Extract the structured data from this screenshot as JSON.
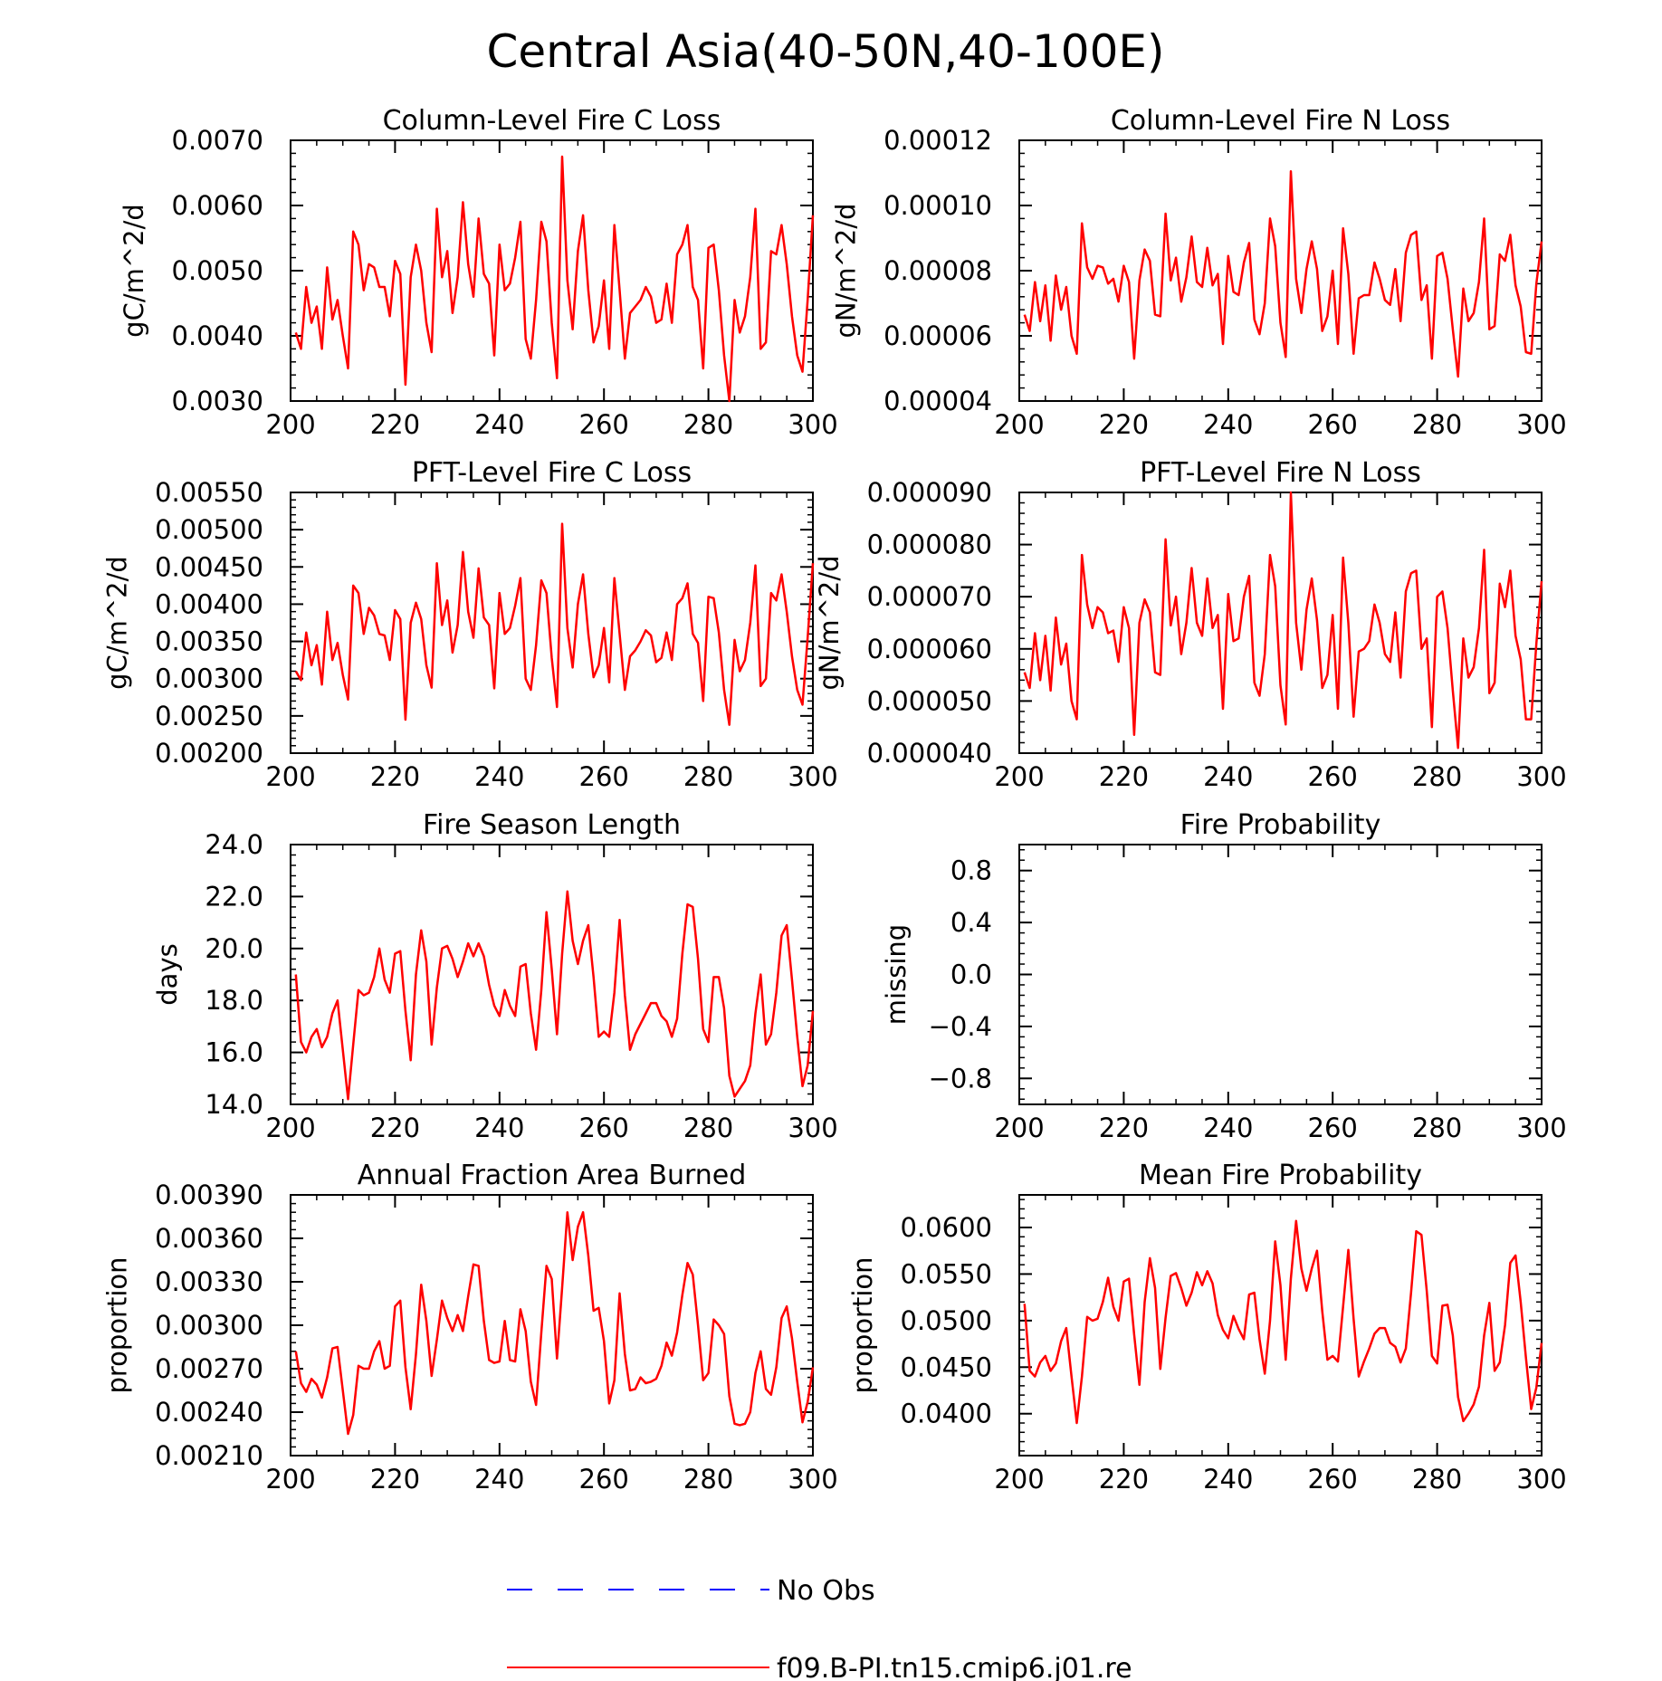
{
  "figure": {
    "title": "Central Asia(40-50N,40-100E)"
  },
  "legend": {
    "entries": [
      {
        "label": "No Obs",
        "color": "#0000ff",
        "dash": true
      },
      {
        "label": "f09.B-PI.tn15.cmip6.j01.re",
        "color": "#ff0000",
        "dash": false
      }
    ]
  },
  "chart_data": [
    {
      "type": "line",
      "title": "Column-Level Fire C Loss",
      "xlabel": "",
      "ylabel": "gC/m^2/d",
      "xlim": [
        200,
        300
      ],
      "ylim": [
        0.003,
        0.007
      ],
      "xticks": [
        "200",
        "220",
        "240",
        "260",
        "280",
        "300"
      ],
      "yticks": [
        "0.0030",
        "0.0040",
        "0.0050",
        "0.0060",
        "0.0070"
      ],
      "series": [
        {
          "color": "#ff0000",
          "x_start": 201,
          "values": [
            0.00405,
            0.0038,
            0.00475,
            0.0042,
            0.00445,
            0.0038,
            0.00505,
            0.00425,
            0.00455,
            0.004,
            0.0035,
            0.0056,
            0.0054,
            0.0047,
            0.0051,
            0.00505,
            0.00475,
            0.00475,
            0.0043,
            0.00515,
            0.00495,
            0.00325,
            0.0049,
            0.0054,
            0.005,
            0.0042,
            0.00375,
            0.00595,
            0.0049,
            0.0053,
            0.00435,
            0.0049,
            0.00605,
            0.0051,
            0.0046,
            0.0058,
            0.00495,
            0.0048,
            0.0037,
            0.0054,
            0.0047,
            0.0048,
            0.0052,
            0.00575,
            0.00395,
            0.00365,
            0.00455,
            0.00575,
            0.00545,
            0.0042,
            0.00335,
            0.00675,
            0.00485,
            0.0041,
            0.0053,
            0.00585,
            0.0047,
            0.0039,
            0.00415,
            0.00485,
            0.0038,
            0.0057,
            0.0047,
            0.00365,
            0.00435,
            0.00445,
            0.00455,
            0.00475,
            0.0046,
            0.0042,
            0.00425,
            0.0048,
            0.0042,
            0.00525,
            0.0054,
            0.0057,
            0.00475,
            0.00455,
            0.0035,
            0.00535,
            0.0054,
            0.0047,
            0.0037,
            0.003,
            0.00455,
            0.00405,
            0.0043,
            0.0049,
            0.00595,
            0.0038,
            0.0039,
            0.0053,
            0.00525,
            0.0057,
            0.0051,
            0.0043,
            0.0037,
            0.00345,
            0.00455,
            0.00585
          ]
        }
      ]
    },
    {
      "type": "line",
      "title": "Column-Level Fire N Loss",
      "xlabel": "",
      "ylabel": "gN/m^2/d",
      "xlim": [
        200,
        300
      ],
      "ylim": [
        4e-05,
        0.00012
      ],
      "xticks": [
        "200",
        "220",
        "240",
        "260",
        "280",
        "300"
      ],
      "yticks": [
        "0.00004",
        "0.00006",
        "0.00008",
        "0.00010",
        "0.00012"
      ],
      "series": [
        {
          "color": "#ff0000",
          "x_start": 201,
          "values": [
            6.65e-05,
            6.15e-05,
            7.65e-05,
            6.45e-05,
            7.55e-05,
            5.85e-05,
            7.85e-05,
            6.8e-05,
            7.5e-05,
            6e-05,
            5.45e-05,
            9.45e-05,
            8.1e-05,
            7.75e-05,
            8.15e-05,
            8.1e-05,
            7.6e-05,
            7.75e-05,
            7.05e-05,
            8.15e-05,
            7.65e-05,
            5.3e-05,
            7.7e-05,
            8.65e-05,
            8.3e-05,
            6.65e-05,
            6.6e-05,
            9.75e-05,
            7.7e-05,
            8.4e-05,
            7.05e-05,
            7.8e-05,
            9.05e-05,
            7.65e-05,
            7.5e-05,
            8.7e-05,
            7.55e-05,
            7.9e-05,
            5.75e-05,
            8.45e-05,
            7.35e-05,
            7.25e-05,
            8.25e-05,
            8.85e-05,
            6.5e-05,
            6.05e-05,
            7e-05,
            9.6e-05,
            8.75e-05,
            6.4e-05,
            5.35e-05,
            0.0001105,
            7.75e-05,
            6.7e-05,
            8.05e-05,
            8.9e-05,
            8.05e-05,
            6.15e-05,
            6.6e-05,
            8e-05,
            5.75e-05,
            9.3e-05,
            7.9e-05,
            5.45e-05,
            7.15e-05,
            7.25e-05,
            7.25e-05,
            8.25e-05,
            7.75e-05,
            7.1e-05,
            6.95e-05,
            8.05e-05,
            6.45e-05,
            8.55e-05,
            9.1e-05,
            9.2e-05,
            7.1e-05,
            7.55e-05,
            5.3e-05,
            8.45e-05,
            8.55e-05,
            7.75e-05,
            6.2e-05,
            4.75e-05,
            7.45e-05,
            6.45e-05,
            6.7e-05,
            7.65e-05,
            9.6e-05,
            6.2e-05,
            6.3e-05,
            8.5e-05,
            8.3e-05,
            9.1e-05,
            7.55e-05,
            6.9e-05,
            5.5e-05,
            5.45e-05,
            7.6e-05,
            8.9e-05
          ]
        }
      ]
    },
    {
      "type": "line",
      "title": "PFT-Level Fire C Loss",
      "xlabel": "",
      "ylabel": "gC/m^2/d",
      "xlim": [
        200,
        300
      ],
      "ylim": [
        0.002,
        0.0055
      ],
      "xticks": [
        "200",
        "220",
        "240",
        "260",
        "280",
        "300"
      ],
      "yticks": [
        "0.00200",
        "0.00250",
        "0.00300",
        "0.00350",
        "0.00400",
        "0.00450",
        "0.00500",
        "0.00550"
      ],
      "series": [
        {
          "color": "#ff0000",
          "x_start": 201,
          "values": [
            0.0031,
            0.00298,
            0.00362,
            0.00318,
            0.00345,
            0.00292,
            0.0039,
            0.00325,
            0.00348,
            0.00305,
            0.00272,
            0.00425,
            0.00415,
            0.0036,
            0.00395,
            0.00385,
            0.0036,
            0.00358,
            0.00325,
            0.00392,
            0.0038,
            0.00245,
            0.00375,
            0.00402,
            0.0038,
            0.00318,
            0.00288,
            0.00455,
            0.00372,
            0.00405,
            0.00335,
            0.00372,
            0.0047,
            0.0039,
            0.00355,
            0.00448,
            0.00382,
            0.00372,
            0.00287,
            0.00415,
            0.0036,
            0.00368,
            0.00398,
            0.00435,
            0.003,
            0.00285,
            0.00345,
            0.00432,
            0.00415,
            0.00328,
            0.00262,
            0.00508,
            0.00368,
            0.00315,
            0.004,
            0.0044,
            0.0036,
            0.00302,
            0.00318,
            0.00368,
            0.00295,
            0.00435,
            0.0036,
            0.00285,
            0.0033,
            0.00338,
            0.0035,
            0.00365,
            0.00358,
            0.00322,
            0.00328,
            0.00362,
            0.00325,
            0.004,
            0.00408,
            0.00428,
            0.0036,
            0.00348,
            0.0027,
            0.0041,
            0.00408,
            0.00362,
            0.00285,
            0.00238,
            0.00352,
            0.0031,
            0.00325,
            0.00375,
            0.00452,
            0.0029,
            0.003,
            0.00415,
            0.00405,
            0.0044,
            0.0039,
            0.0033,
            0.00285,
            0.00265,
            0.00355,
            0.00455
          ]
        }
      ]
    },
    {
      "type": "line",
      "title": "PFT-Level Fire N Loss",
      "xlabel": "",
      "ylabel": "gN/m^2/d",
      "xlim": [
        200,
        300
      ],
      "ylim": [
        4e-05,
        9e-05
      ],
      "xticks": [
        "200",
        "220",
        "240",
        "260",
        "280",
        "300"
      ],
      "yticks": [
        "0.000040",
        "0.000050",
        "0.000060",
        "0.000070",
        "0.000080",
        "0.000090"
      ],
      "series": [
        {
          "color": "#ff0000",
          "x_start": 201,
          "values": [
            5.55e-05,
            5.25e-05,
            6.3e-05,
            5.4e-05,
            6.25e-05,
            5.2e-05,
            6.6e-05,
            5.7e-05,
            6.1e-05,
            5e-05,
            4.65e-05,
            7.8e-05,
            6.85e-05,
            6.4e-05,
            6.8e-05,
            6.7e-05,
            6.3e-05,
            6.35e-05,
            5.75e-05,
            6.8e-05,
            6.4e-05,
            4.35e-05,
            6.5e-05,
            6.95e-05,
            6.7e-05,
            5.55e-05,
            5.5e-05,
            8.1e-05,
            6.45e-05,
            7e-05,
            5.9e-05,
            6.5e-05,
            7.55e-05,
            6.5e-05,
            6.25e-05,
            7.35e-05,
            6.4e-05,
            6.65e-05,
            4.85e-05,
            7.05e-05,
            6.15e-05,
            6.2e-05,
            7e-05,
            7.4e-05,
            5.35e-05,
            5.1e-05,
            5.9e-05,
            7.8e-05,
            7.2e-05,
            5.3e-05,
            4.55e-05,
            9e-05,
            6.5e-05,
            5.6e-05,
            6.75e-05,
            7.35e-05,
            6.55e-05,
            5.25e-05,
            5.5e-05,
            6.65e-05,
            4.85e-05,
            7.75e-05,
            6.5e-05,
            4.7e-05,
            5.95e-05,
            6e-05,
            6.15e-05,
            6.85e-05,
            6.5e-05,
            5.9e-05,
            5.75e-05,
            6.7e-05,
            5.45e-05,
            7.1e-05,
            7.45e-05,
            7.5e-05,
            6e-05,
            6.2e-05,
            4.5e-05,
            7e-05,
            7.1e-05,
            6.4e-05,
            5.2e-05,
            4.1e-05,
            6.2e-05,
            5.45e-05,
            5.65e-05,
            6.4e-05,
            7.9e-05,
            5.15e-05,
            5.35e-05,
            7.25e-05,
            6.8e-05,
            7.5e-05,
            6.25e-05,
            5.8e-05,
            4.65e-05,
            4.65e-05,
            6.1e-05,
            7.3e-05
          ]
        }
      ]
    },
    {
      "type": "line",
      "title": "Fire Season Length",
      "xlabel": "",
      "ylabel": "days",
      "xlim": [
        200,
        300
      ],
      "ylim": [
        14.0,
        24.0
      ],
      "xticks": [
        "200",
        "220",
        "240",
        "260",
        "280",
        "300"
      ],
      "yticks": [
        "14.0",
        "16.0",
        "18.0",
        "20.0",
        "22.0",
        "24.0"
      ],
      "series": [
        {
          "color": "#ff0000",
          "x_start": 201,
          "values": [
            19.0,
            16.4,
            16.0,
            16.6,
            16.9,
            16.2,
            16.6,
            17.5,
            18.0,
            16.1,
            14.2,
            16.3,
            18.4,
            18.2,
            18.3,
            18.9,
            20.0,
            18.8,
            18.3,
            19.8,
            19.9,
            17.6,
            15.7,
            19.0,
            20.7,
            19.5,
            16.3,
            18.5,
            20.0,
            20.1,
            19.6,
            18.9,
            19.5,
            20.2,
            19.7,
            20.2,
            19.7,
            18.6,
            17.8,
            17.4,
            18.4,
            17.8,
            17.4,
            19.3,
            19.4,
            17.5,
            16.1,
            18.4,
            21.4,
            19.2,
            16.7,
            19.8,
            22.2,
            20.3,
            19.4,
            20.3,
            20.9,
            18.9,
            16.6,
            16.8,
            16.6,
            18.3,
            21.1,
            18.2,
            16.1,
            16.7,
            17.1,
            17.5,
            17.9,
            17.9,
            17.4,
            17.2,
            16.6,
            17.3,
            19.8,
            21.7,
            21.6,
            19.6,
            16.9,
            16.4,
            18.9,
            18.9,
            17.7,
            15.1,
            14.3,
            14.6,
            14.9,
            15.5,
            17.5,
            19.0,
            16.3,
            16.7,
            18.3,
            20.5,
            20.9,
            18.8,
            16.6,
            14.7,
            15.5,
            17.6
          ]
        }
      ]
    },
    {
      "type": "line",
      "title": "Fire Probability",
      "xlabel": "",
      "ylabel": "missing",
      "xlim": [
        200,
        300
      ],
      "ylim": [
        -1.0,
        1.0
      ],
      "xticks": [
        "200",
        "220",
        "240",
        "260",
        "280",
        "300"
      ],
      "yticks": [
        "-0.8",
        "-0.4",
        "0.0",
        "0.4",
        "0.8"
      ],
      "series": []
    },
    {
      "type": "line",
      "title": "Annual Fraction Area Burned",
      "xlabel": "",
      "ylabel": "proportion",
      "xlim": [
        200,
        300
      ],
      "ylim": [
        0.0021,
        0.0039
      ],
      "xticks": [
        "200",
        "220",
        "240",
        "260",
        "280",
        "300"
      ],
      "yticks": [
        "0.00210",
        "0.00240",
        "0.00270",
        "0.00300",
        "0.00330",
        "0.00360",
        "0.00390"
      ],
      "series": [
        {
          "color": "#ff0000",
          "x_start": 201,
          "values": [
            0.00282,
            0.0026,
            0.00254,
            0.00263,
            0.00259,
            0.0025,
            0.00264,
            0.00284,
            0.00285,
            0.00255,
            0.00225,
            0.00238,
            0.00272,
            0.0027,
            0.0027,
            0.00282,
            0.00289,
            0.0027,
            0.00272,
            0.00313,
            0.00317,
            0.00271,
            0.00242,
            0.0028,
            0.00328,
            0.00303,
            0.00265,
            0.0029,
            0.00317,
            0.00305,
            0.00296,
            0.00307,
            0.00296,
            0.0032,
            0.00342,
            0.00341,
            0.00303,
            0.00276,
            0.00274,
            0.00275,
            0.00303,
            0.00276,
            0.00275,
            0.00311,
            0.00296,
            0.00261,
            0.00245,
            0.00295,
            0.00341,
            0.00332,
            0.00277,
            0.00326,
            0.00378,
            0.00345,
            0.00368,
            0.00378,
            0.00348,
            0.0031,
            0.00312,
            0.00289,
            0.00246,
            0.00262,
            0.00322,
            0.0028,
            0.00255,
            0.00256,
            0.00264,
            0.0026,
            0.00261,
            0.00263,
            0.00272,
            0.00288,
            0.00279,
            0.00295,
            0.00321,
            0.00343,
            0.00335,
            0.003,
            0.00262,
            0.00267,
            0.00304,
            0.003,
            0.00294,
            0.00251,
            0.00232,
            0.00231,
            0.00232,
            0.0024,
            0.00267,
            0.00282,
            0.00256,
            0.00252,
            0.00271,
            0.00305,
            0.00313,
            0.00291,
            0.00261,
            0.00233,
            0.00247,
            0.00271
          ]
        }
      ]
    },
    {
      "type": "line",
      "title": "Mean Fire Probability",
      "xlabel": "",
      "ylabel": "proportion",
      "xlim": [
        200,
        300
      ],
      "ylim": [
        0.0355,
        0.0635
      ],
      "xticks": [
        "200",
        "220",
        "240",
        "260",
        "280",
        "300"
      ],
      "yticks": [
        "0.0400",
        "0.0450",
        "0.0500",
        "0.0550",
        "0.0600"
      ],
      "series": [
        {
          "color": "#ff0000",
          "x_start": 201,
          "values": [
            0.0518,
            0.0446,
            0.044,
            0.0455,
            0.0462,
            0.0446,
            0.0454,
            0.0478,
            0.0492,
            0.044,
            0.039,
            0.044,
            0.0504,
            0.05,
            0.0502,
            0.052,
            0.0546,
            0.0515,
            0.05,
            0.0542,
            0.0545,
            0.0485,
            0.0431,
            0.052,
            0.0567,
            0.0535,
            0.0448,
            0.0503,
            0.0548,
            0.0551,
            0.0535,
            0.0516,
            0.053,
            0.0552,
            0.0538,
            0.0553,
            0.054,
            0.0506,
            0.049,
            0.0481,
            0.0505,
            0.0491,
            0.048,
            0.0528,
            0.053,
            0.048,
            0.0443,
            0.05,
            0.0585,
            0.0538,
            0.0458,
            0.0545,
            0.0607,
            0.0556,
            0.0532,
            0.0556,
            0.0575,
            0.051,
            0.0458,
            0.0462,
            0.0456,
            0.0515,
            0.0576,
            0.0502,
            0.044,
            0.0456,
            0.047,
            0.0486,
            0.0492,
            0.0492,
            0.0476,
            0.0472,
            0.0455,
            0.047,
            0.053,
            0.0596,
            0.0592,
            0.0532,
            0.0462,
            0.0454,
            0.0516,
            0.0517,
            0.0484,
            0.0418,
            0.0392,
            0.04,
            0.041,
            0.0429,
            0.0484,
            0.0519,
            0.0446,
            0.0455,
            0.0495,
            0.0562,
            0.057,
            0.052,
            0.046,
            0.0405,
            0.0428,
            0.0476
          ]
        }
      ]
    }
  ]
}
